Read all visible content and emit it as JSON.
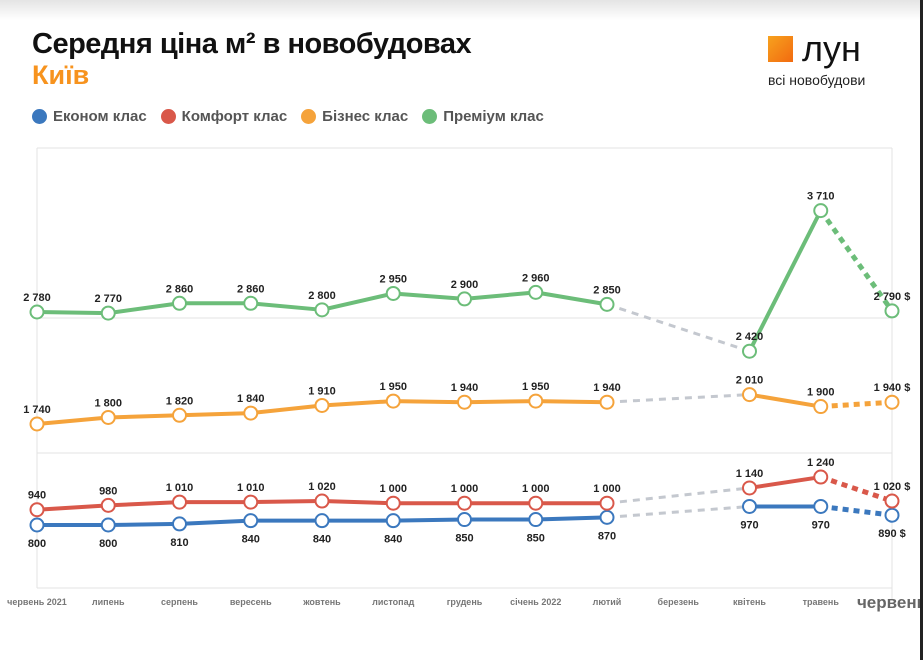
{
  "header": {
    "title": "Середня ціна м² в новобудовах",
    "city": "Київ"
  },
  "logo": {
    "name": "лун",
    "tagline": "всі новобудови"
  },
  "colors": {
    "econom": "#3b78be",
    "comfort": "#d9584a",
    "business": "#f5a33b",
    "premium": "#6cbd79",
    "gap": "#c4c8cf",
    "accent": "#f7931e"
  },
  "chart_data": {
    "type": "line",
    "categories": [
      "червень 2021",
      "липень",
      "серпень",
      "вересень",
      "жовтень",
      "листопад",
      "грудень",
      "січень 2022",
      "лютий",
      "березень",
      "квітень",
      "травень",
      "червень"
    ],
    "series": [
      {
        "name": "Економ клас",
        "key": "econom",
        "values": [
          800,
          800,
          810,
          840,
          840,
          840,
          850,
          850,
          870,
          null,
          970,
          970,
          890
        ]
      },
      {
        "name": "Комфорт клас",
        "key": "comfort",
        "values": [
          940,
          980,
          1010,
          1010,
          1020,
          1000,
          1000,
          1000,
          1000,
          null,
          1140,
          1240,
          1020
        ]
      },
      {
        "name": "Бізнес клас",
        "key": "business",
        "values": [
          1740,
          1800,
          1820,
          1840,
          1910,
          1950,
          1940,
          1950,
          1940,
          null,
          2010,
          1900,
          1940
        ]
      },
      {
        "name": "Преміум клас",
        "key": "premium",
        "values": [
          2780,
          2770,
          2860,
          2860,
          2800,
          2950,
          2900,
          2960,
          2850,
          null,
          2420,
          3710,
          2790
        ]
      }
    ],
    "labels": {
      "econom": [
        "800",
        "800",
        "810",
        "840",
        "840",
        "840",
        "850",
        "850",
        "870",
        "",
        "970",
        "970",
        "890 $"
      ],
      "comfort": [
        "940",
        "980",
        "1 010",
        "1 010",
        "1 020",
        "1 000",
        "1 000",
        "1 000",
        "1 000",
        "",
        "1 140",
        "1 240",
        "1 020 $"
      ],
      "business": [
        "1 740",
        "1 800",
        "1 820",
        "1 840",
        "1 910",
        "1 950",
        "1 940",
        "1 950",
        "1 940",
        "",
        "2 010",
        "1 900",
        "1 940 $"
      ],
      "premium": [
        "2 780",
        "2 770",
        "2 860",
        "2 860",
        "2 800",
        "2 950",
        "2 900",
        "2 960",
        "2 850",
        "",
        "2 420",
        "3 710",
        "2 790 $"
      ]
    },
    "note": "last month dashed (preliminary); no data for березень",
    "grid": true,
    "legend": "top-left",
    "broken_axis": true
  }
}
